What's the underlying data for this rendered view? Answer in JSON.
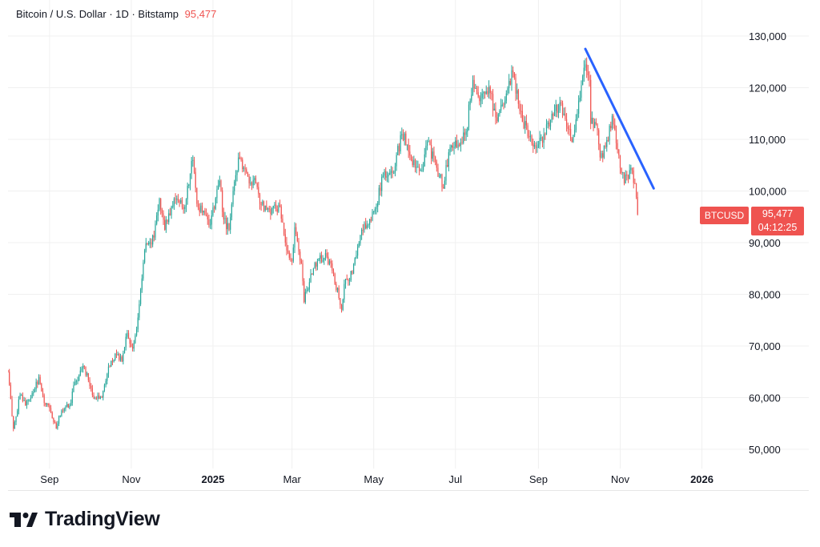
{
  "header": {
    "symbol_desc": "Bitcoin / U.S. Dollar · 1D · Bitstamp",
    "last_price": "95,477"
  },
  "price_tag": {
    "symbol": "BTCUSD",
    "price": "95,477",
    "countdown": "04:12:25"
  },
  "brand": {
    "name": "TradingView",
    "logo_text": "17"
  },
  "colors": {
    "up": "#26a69a",
    "down": "#ef5350",
    "trendline": "#2962ff",
    "grid": "#f0f0f0"
  },
  "chart_data": {
    "type": "candlestick",
    "title": "Bitcoin / U.S. Dollar · 1D · Bitstamp",
    "ylim": [
      46000,
      136000
    ],
    "y_ticks": [
      50000,
      60000,
      70000,
      80000,
      90000,
      100000,
      110000,
      120000,
      130000
    ],
    "y_tick_labels": [
      "50,000",
      "60,000",
      "70,000",
      "80,000",
      "90,000",
      "100,000",
      "110,000",
      "120,000",
      "130,000"
    ],
    "x_ticks": [
      {
        "label": "Sep",
        "date": "2024-09-01"
      },
      {
        "label": "Nov",
        "date": "2024-11-01"
      },
      {
        "label": "2025",
        "date": "2025-01-01",
        "bold": true
      },
      {
        "label": "Mar",
        "date": "2025-03-01"
      },
      {
        "label": "May",
        "date": "2025-05-01"
      },
      {
        "label": "Jul",
        "date": "2025-07-01"
      },
      {
        "label": "Sep",
        "date": "2025-09-01"
      },
      {
        "label": "Nov",
        "date": "2025-11-01"
      },
      {
        "label": "2026",
        "date": "2026-01-01",
        "bold": true
      }
    ],
    "x_start": "2024-08-01",
    "x_end": "2026-01-24",
    "close_path": [
      [
        "2024-08-01",
        65000
      ],
      [
        "2024-08-05",
        54000
      ],
      [
        "2024-08-10",
        60500
      ],
      [
        "2024-08-14",
        58500
      ],
      [
        "2024-08-20",
        61000
      ],
      [
        "2024-08-24",
        64000
      ],
      [
        "2024-08-28",
        59000
      ],
      [
        "2024-09-01",
        58000
      ],
      [
        "2024-09-06",
        54000
      ],
      [
        "2024-09-10",
        57500
      ],
      [
        "2024-09-16",
        58500
      ],
      [
        "2024-09-20",
        63000
      ],
      [
        "2024-09-27",
        66000
      ],
      [
        "2024-10-03",
        60500
      ],
      [
        "2024-10-10",
        60000
      ],
      [
        "2024-10-15",
        66000
      ],
      [
        "2024-10-20",
        68500
      ],
      [
        "2024-10-25",
        67000
      ],
      [
        "2024-10-29",
        72500
      ],
      [
        "2024-11-02",
        69500
      ],
      [
        "2024-11-06",
        75500
      ],
      [
        "2024-11-11",
        88500
      ],
      [
        "2024-11-14",
        90000
      ],
      [
        "2024-11-18",
        91000
      ],
      [
        "2024-11-22",
        98500
      ],
      [
        "2024-11-26",
        92500
      ],
      [
        "2024-12-01",
        97000
      ],
      [
        "2024-12-05",
        98500
      ],
      [
        "2024-12-10",
        96500
      ],
      [
        "2024-12-13",
        101000
      ],
      [
        "2024-12-17",
        106000
      ],
      [
        "2024-12-20",
        97500
      ],
      [
        "2024-12-26",
        95500
      ],
      [
        "2024-12-30",
        93500
      ],
      [
        "2025-01-06",
        102000
      ],
      [
        "2025-01-09",
        94500
      ],
      [
        "2025-01-13",
        92500
      ],
      [
        "2025-01-16",
        100000
      ],
      [
        "2025-01-20",
        106500
      ],
      [
        "2025-01-24",
        104500
      ],
      [
        "2025-01-28",
        101500
      ],
      [
        "2025-02-01",
        102500
      ],
      [
        "2025-02-05",
        97500
      ],
      [
        "2025-02-12",
        96500
      ],
      [
        "2025-02-20",
        97000
      ],
      [
        "2025-02-25",
        88500
      ],
      [
        "2025-03-01",
        86500
      ],
      [
        "2025-03-03",
        93000
      ],
      [
        "2025-03-08",
        86000
      ],
      [
        "2025-03-10",
        78500
      ],
      [
        "2025-03-15",
        84000
      ],
      [
        "2025-03-20",
        86500
      ],
      [
        "2025-03-26",
        88000
      ],
      [
        "2025-04-01",
        84000
      ],
      [
        "2025-04-07",
        77000
      ],
      [
        "2025-04-09",
        82000
      ],
      [
        "2025-04-15",
        84000
      ],
      [
        "2025-04-22",
        92500
      ],
      [
        "2025-04-28",
        94500
      ],
      [
        "2025-05-02",
        96500
      ],
      [
        "2025-05-08",
        103000
      ],
      [
        "2025-05-15",
        103500
      ],
      [
        "2025-05-22",
        111000
      ],
      [
        "2025-05-26",
        109000
      ],
      [
        "2025-06-01",
        104500
      ],
      [
        "2025-06-06",
        104000
      ],
      [
        "2025-06-10",
        109500
      ],
      [
        "2025-06-17",
        104500
      ],
      [
        "2025-06-22",
        100500
      ],
      [
        "2025-06-26",
        107500
      ],
      [
        "2025-07-03",
        109000
      ],
      [
        "2025-07-09",
        111500
      ],
      [
        "2025-07-12",
        117500
      ],
      [
        "2025-07-14",
        121500
      ],
      [
        "2025-07-20",
        118000
      ],
      [
        "2025-07-27",
        119000
      ],
      [
        "2025-08-01",
        113500
      ],
      [
        "2025-08-07",
        117500
      ],
      [
        "2025-08-13",
        123000
      ],
      [
        "2025-08-18",
        115500
      ],
      [
        "2025-08-25",
        110500
      ],
      [
        "2025-08-31",
        108500
      ],
      [
        "2025-09-05",
        111000
      ],
      [
        "2025-09-13",
        115500
      ],
      [
        "2025-09-18",
        117000
      ],
      [
        "2025-09-22",
        112500
      ],
      [
        "2025-09-26",
        109500
      ],
      [
        "2025-10-01",
        117500
      ],
      [
        "2025-10-06",
        124500
      ],
      [
        "2025-10-09",
        121500
      ],
      [
        "2025-10-10",
        113000
      ],
      [
        "2025-10-14",
        113000
      ],
      [
        "2025-10-17",
        106500
      ],
      [
        "2025-10-21",
        108500
      ],
      [
        "2025-10-26",
        114500
      ],
      [
        "2025-10-30",
        108000
      ],
      [
        "2025-11-04",
        101500
      ],
      [
        "2025-11-06",
        103000
      ],
      [
        "2025-11-09",
        104500
      ],
      [
        "2025-11-12",
        101500
      ],
      [
        "2025-11-14",
        95477
      ]
    ],
    "trendline": {
      "from": [
        "2025-10-06",
        127500
      ],
      "to": [
        "2025-11-26",
        100500
      ]
    },
    "last_price": 95477
  }
}
